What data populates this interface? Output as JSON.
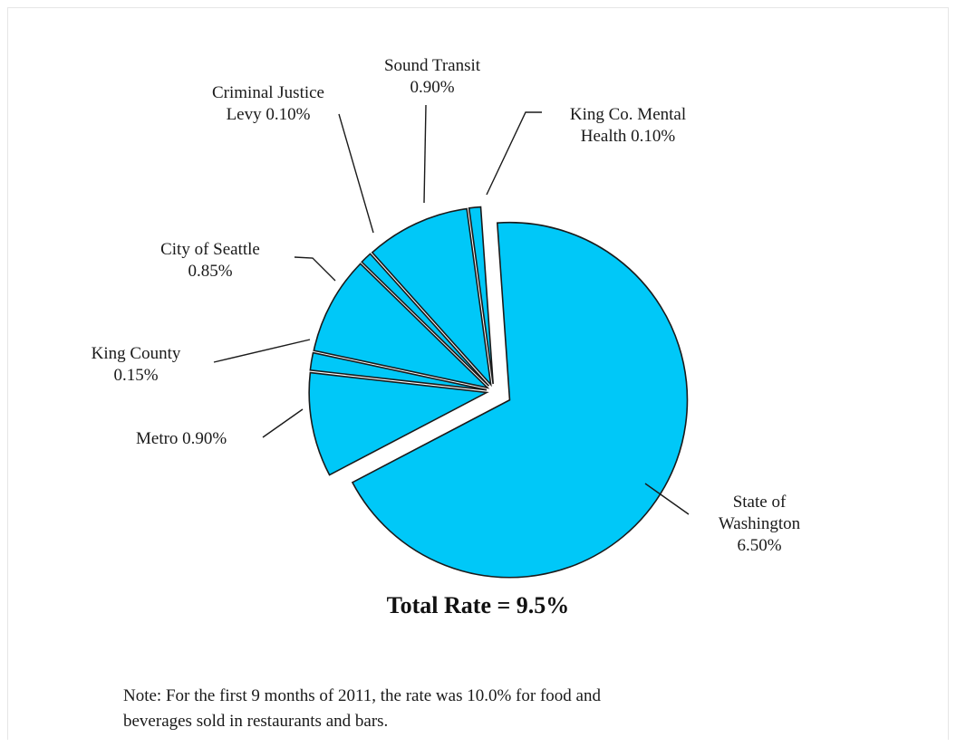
{
  "chart_data": {
    "type": "pie",
    "title": "",
    "slices": [
      {
        "label": "State of Washington",
        "label_lines": [
          "State of",
          "Washington",
          "6.50%"
        ],
        "value": 6.5,
        "display": "6.50%"
      },
      {
        "label": "Metro",
        "label_lines": [
          "Metro 0.90%"
        ],
        "value": 0.9,
        "display": "0.90%"
      },
      {
        "label": "King County",
        "label_lines": [
          "King County",
          "0.15%"
        ],
        "value": 0.15,
        "display": "0.15%"
      },
      {
        "label": "City of Seattle",
        "label_lines": [
          "City of Seattle",
          "0.85%"
        ],
        "value": 0.85,
        "display": "0.85%"
      },
      {
        "label": "Criminal Justice Levy",
        "label_lines": [
          "Criminal Justice",
          "Levy 0.10%"
        ],
        "value": 0.1,
        "display": "0.10%"
      },
      {
        "label": "Sound Transit",
        "label_lines": [
          "Sound Transit",
          "0.90%"
        ],
        "value": 0.9,
        "display": "0.90%"
      },
      {
        "label": "King Co. Mental Health",
        "label_lines": [
          "King Co. Mental",
          "Health 0.10%"
        ],
        "value": 0.1,
        "display": "0.10%"
      }
    ],
    "total_text": "Total Rate = 9.5%",
    "slice_color": "#00c8f8",
    "legend": "none"
  },
  "note": {
    "line1": "Note: For the first 9 months of 2011, the rate was 10.0% for food and",
    "line2": "beverages sold in restaurants and bars."
  }
}
